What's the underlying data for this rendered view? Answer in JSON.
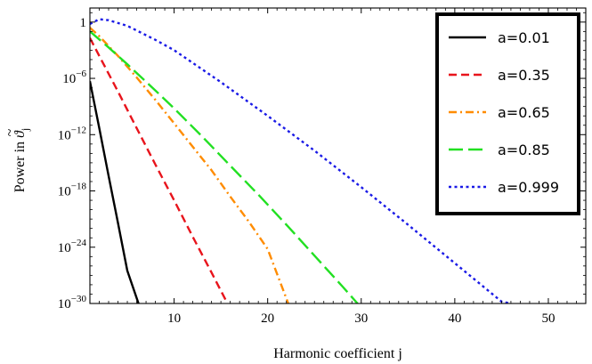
{
  "chart_data": {
    "type": "line",
    "title": "",
    "xlabel": "Harmonic coefficient j",
    "ylabel_prefix": "Power in ",
    "ylabel_symbol": "ϑ",
    "ylabel_accent": "~",
    "ylabel_subscript": "j",
    "xscale": "linear",
    "yscale": "log",
    "xlim": [
      1,
      54
    ],
    "ylim_log10": [
      -30,
      1.5
    ],
    "x_ticks": [
      10,
      20,
      30,
      40,
      50
    ],
    "x_tick_labels": [
      "10",
      "20",
      "30",
      "40",
      "50"
    ],
    "y_ticks_log10": [
      0,
      -6,
      -12,
      -18,
      -24,
      -30
    ],
    "y_tick_labels": [
      {
        "base": "1",
        "exp": ""
      },
      {
        "base": "10",
        "exp": "−6"
      },
      {
        "base": "10",
        "exp": "−12"
      },
      {
        "base": "10",
        "exp": "−18"
      },
      {
        "base": "10",
        "exp": "−24"
      },
      {
        "base": "10",
        "exp": "−30"
      }
    ],
    "grid": false,
    "legend_placement": "top-right",
    "series": [
      {
        "name": "a=0.01",
        "color": "#000000",
        "dash": "solid",
        "x": [
          1,
          2,
          3,
          4,
          5,
          6.2
        ],
        "y_log10": [
          -6.3,
          -11.3,
          -16.4,
          -21.4,
          -26.5,
          -30
        ]
      },
      {
        "name": "a=0.35",
        "color": "#e8141c",
        "dash": "dashed",
        "x": [
          1,
          2,
          4,
          6,
          8,
          10,
          12,
          14,
          15.7
        ],
        "y_log10": [
          -1.7,
          -3.6,
          -7.4,
          -11.3,
          -15.2,
          -19.0,
          -22.9,
          -26.7,
          -30
        ]
      },
      {
        "name": "a=0.65",
        "color": "#ff8c00",
        "dash": "dash-dot",
        "x": [
          1,
          2,
          4,
          6,
          8,
          10,
          12,
          14,
          16,
          18,
          20,
          22.2
        ],
        "y_log10": [
          -0.6,
          -1.5,
          -3.6,
          -5.9,
          -8.3,
          -10.8,
          -13.3,
          -15.8,
          -18.6,
          -21.3,
          -24.2,
          -30
        ]
      },
      {
        "name": "a=0.85",
        "color": "#22e022",
        "dash": "long-dash",
        "x": [
          1,
          3,
          5,
          8,
          10,
          13,
          16,
          19,
          22,
          25,
          28,
          29.6
        ],
        "y_log10": [
          -1.0,
          -2.7,
          -4.5,
          -7.3,
          -9.2,
          -12.2,
          -15.3,
          -18.4,
          -21.6,
          -24.9,
          -28.2,
          -30
        ]
      },
      {
        "name": "a=0.999",
        "color": "#1a1ae6",
        "dash": "dotted",
        "x": [
          1,
          2,
          3,
          5,
          8,
          10,
          15,
          20,
          25,
          30,
          35,
          40,
          45,
          46
        ],
        "y_log10": [
          -0.2,
          0.3,
          0.2,
          -0.4,
          -1.9,
          -3.0,
          -6.4,
          -10.0,
          -13.7,
          -17.6,
          -21.6,
          -25.7,
          -29.8,
          -30
        ]
      }
    ]
  }
}
